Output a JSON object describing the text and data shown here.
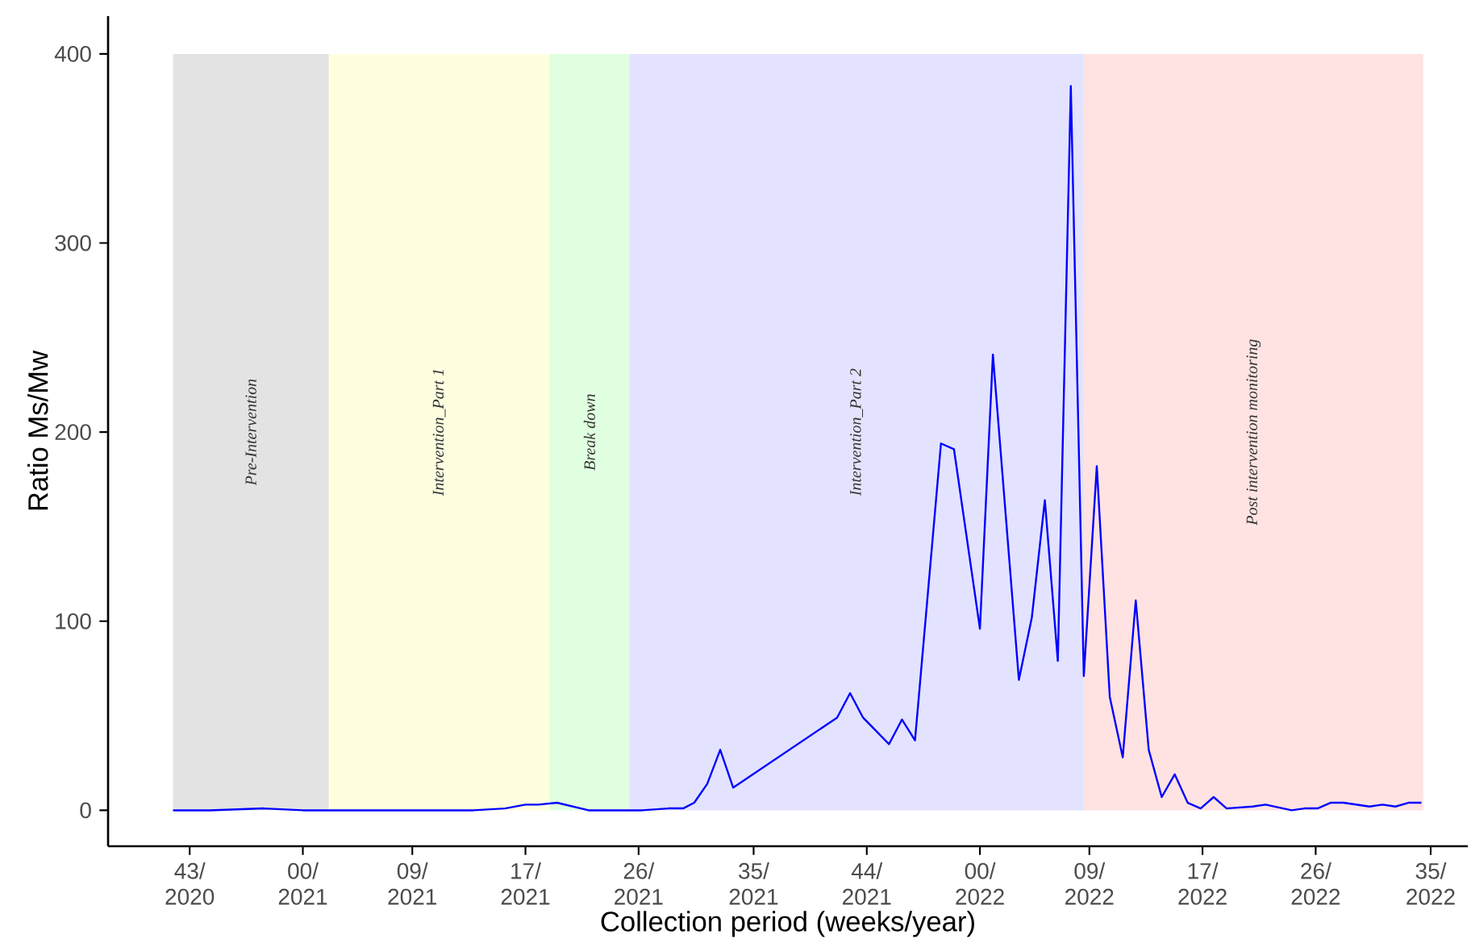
{
  "chart_data": {
    "type": "line",
    "xlabel": "Collection period (weeks/year)",
    "ylabel": "Ratio Ms/Mw",
    "xlim": [
      "2020-09-18",
      "2022-09-21"
    ],
    "ylim": [
      -19,
      420
    ],
    "xticks": [
      {
        "value": "2020-11-01",
        "label": "43/ 2020"
      },
      {
        "value": "2021-01-01",
        "label": "00/ 2021"
      },
      {
        "value": "2021-03-01",
        "label": "09/ 2021"
      },
      {
        "value": "2021-05-01",
        "label": "17/ 2021"
      },
      {
        "value": "2021-07-01",
        "label": "26/ 2021"
      },
      {
        "value": "2021-09-01",
        "label": "35/ 2021"
      },
      {
        "value": "2021-11-01",
        "label": "44/ 2021"
      },
      {
        "value": "2022-01-01",
        "label": "00/ 2022"
      },
      {
        "value": "2022-03-01",
        "label": "09/ 2022"
      },
      {
        "value": "2022-05-01",
        "label": "17/ 2022"
      },
      {
        "value": "2022-07-01",
        "label": "26/ 2022"
      },
      {
        "value": "2022-09-01",
        "label": "35/ 2022"
      }
    ],
    "yticks": [
      0,
      100,
      200,
      300,
      400
    ],
    "grid": false,
    "bands": [
      {
        "axis": "x",
        "from": "2020-10-23",
        "to": "2021-01-15",
        "label": "Pre-Intervention",
        "color": "#e3e3e3"
      },
      {
        "axis": "x",
        "from": "2021-01-15",
        "to": "2021-05-14",
        "label": "Intervention_Part 1",
        "color": "#ffffe0"
      },
      {
        "axis": "x",
        "from": "2021-05-14",
        "to": "2021-06-26",
        "label": "Break down",
        "color": "#e0ffe0"
      },
      {
        "axis": "x",
        "from": "2021-06-26",
        "to": "2022-02-26",
        "label": "Intervention_Part 2",
        "color": "#e3e3ff"
      },
      {
        "axis": "x",
        "from": "2022-02-26",
        "to": "2022-08-28",
        "label": "Post intervention monitoring",
        "color": "#ffe3e3"
      }
    ],
    "x": [
      "2020-10-23",
      "2020-11-12",
      "2020-12-11",
      "2021-01-01",
      "2021-01-21",
      "2021-02-25",
      "2021-04-03",
      "2021-04-20",
      "2021-05-01",
      "2021-05-08",
      "2021-05-18",
      "2021-06-04",
      "2021-06-19",
      "2021-07-03",
      "2021-07-17",
      "2021-07-25",
      "2021-07-31",
      "2021-08-07",
      "2021-08-14",
      "2021-08-21",
      "2021-10-16",
      "2021-10-23",
      "2021-10-30",
      "2021-11-13",
      "2021-11-20",
      "2021-11-27",
      "2021-12-11",
      "2021-12-18",
      "2022-01-01",
      "2022-01-08",
      "2022-01-22",
      "2022-01-29",
      "2022-02-05",
      "2022-02-12",
      "2022-02-19",
      "2022-02-26",
      "2022-03-05",
      "2022-03-12",
      "2022-03-19",
      "2022-03-26",
      "2022-04-02",
      "2022-04-09",
      "2022-04-16",
      "2022-04-23",
      "2022-04-30",
      "2022-05-07",
      "2022-05-14",
      "2022-05-28",
      "2022-06-04",
      "2022-06-18",
      "2022-06-25",
      "2022-07-02",
      "2022-07-09",
      "2022-07-16",
      "2022-07-30",
      "2022-08-06",
      "2022-08-13",
      "2022-08-20",
      "2022-08-27"
    ],
    "series": [
      {
        "color": "#0000ff",
        "values": [
          0,
          0,
          1,
          0,
          0,
          0,
          0,
          1,
          3,
          3,
          4,
          0,
          0,
          0,
          1,
          1,
          4,
          14,
          32,
          12,
          49,
          62,
          49,
          35,
          48,
          37,
          194,
          191,
          96,
          241,
          69,
          102,
          164,
          79,
          383,
          71,
          182,
          60,
          28,
          111,
          32,
          7,
          19,
          4,
          1,
          7,
          1,
          2,
          3,
          0,
          1,
          1,
          4,
          4,
          2,
          3,
          2,
          4,
          4
        ]
      }
    ]
  }
}
